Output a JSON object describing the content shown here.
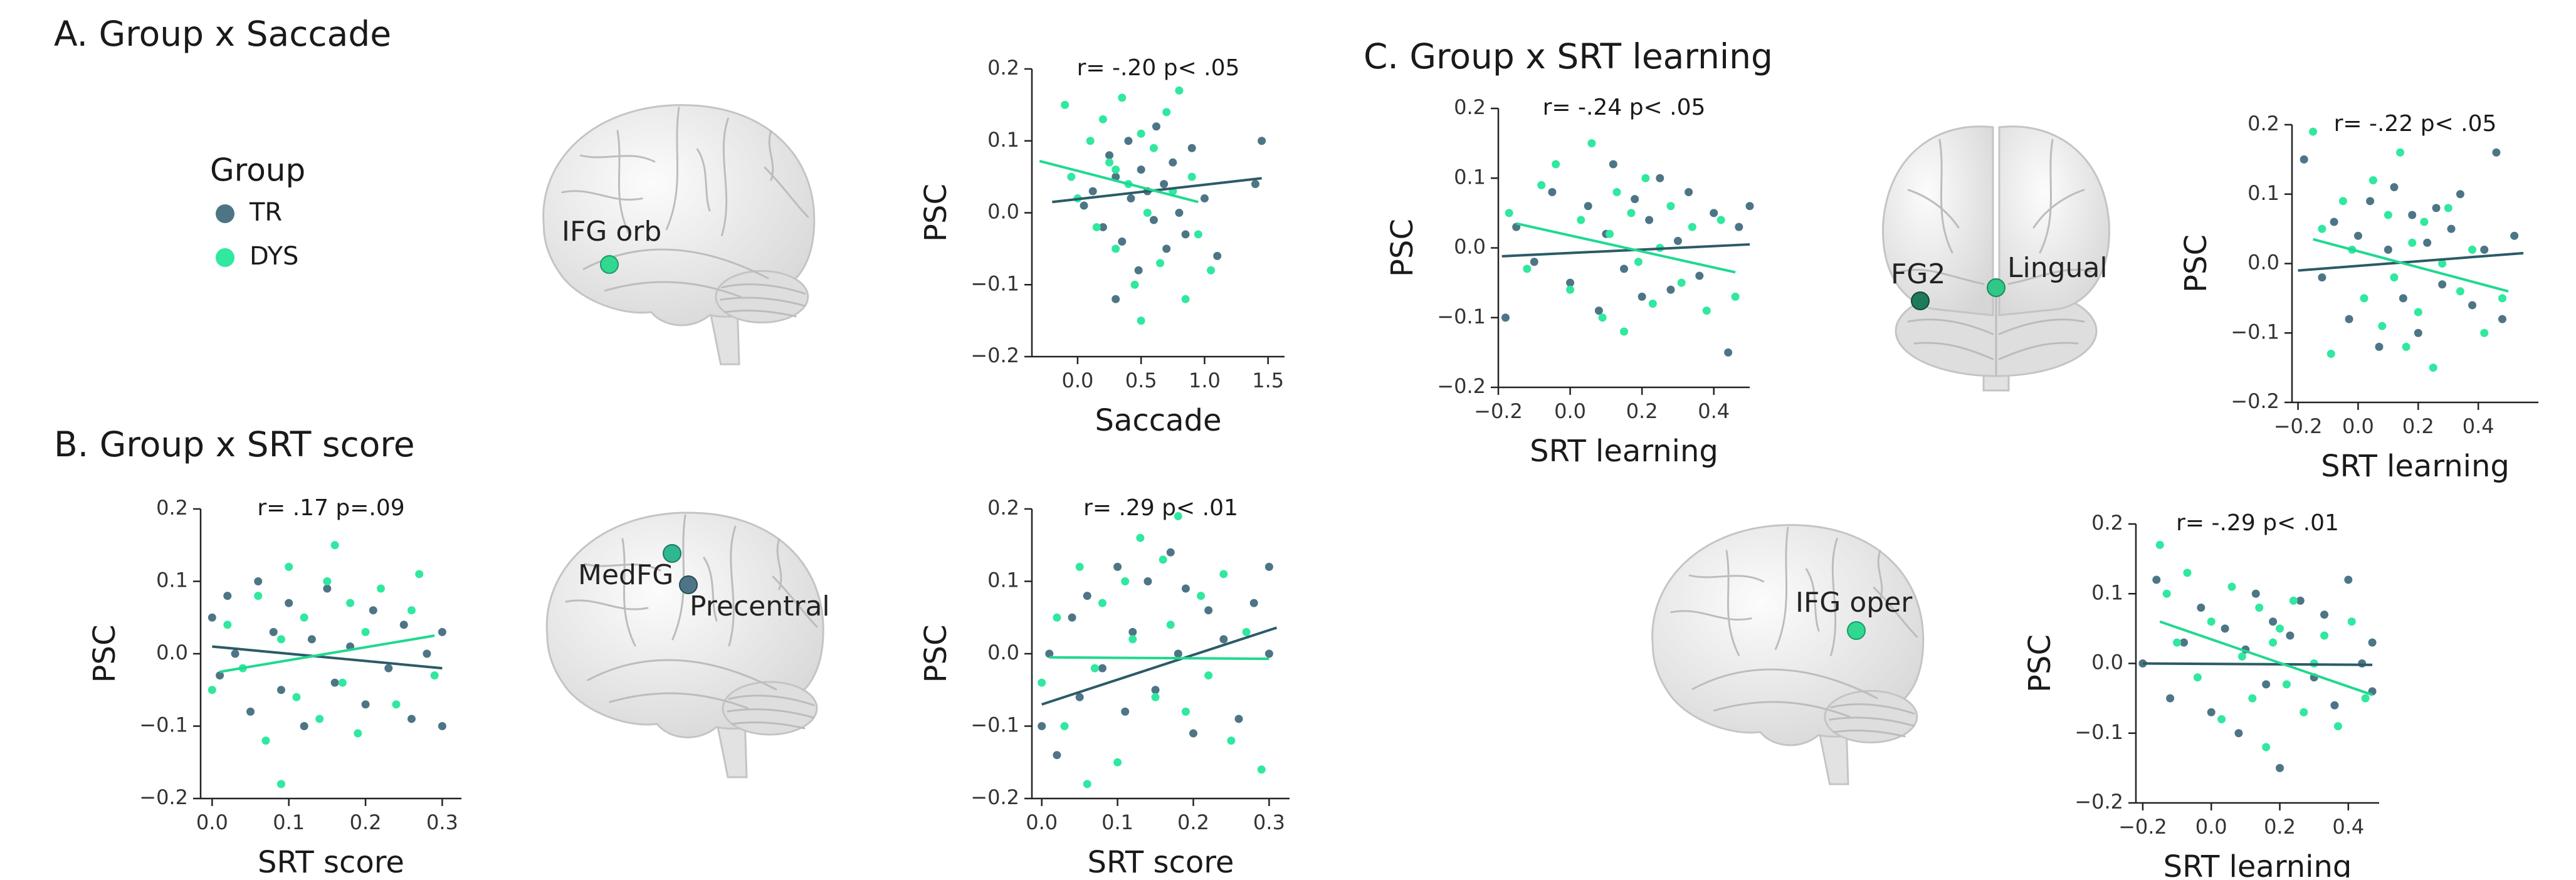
{
  "panel_titles": [
    "A. Group x Saccade",
    "B. Group x SRT score",
    "C. Group x SRT learning"
  ],
  "legend": {
    "title": "Group",
    "items": [
      {
        "name": "TR",
        "color": "#4d7585"
      },
      {
        "name": "DYS",
        "color": "#30e8a0"
      }
    ]
  },
  "brain_labels": [
    "IFG orb",
    "MedFG",
    "Precentral",
    "FG2",
    "Lingual",
    "IFG oper"
  ],
  "chart_data": [
    {
      "type": "scatter",
      "annotation": "r= -.20  p< .05",
      "xlabel": "Saccade",
      "ylabel": "PSC",
      "xlim": [
        -0.36,
        1.63
      ],
      "ylim": [
        -0.2,
        0.2
      ],
      "xticks": [
        {
          "value": 0,
          "label": "0.0"
        },
        0.5,
        {
          "value": 1,
          "label": "1.0"
        },
        1.5
      ],
      "yticks": [
        {
          "value": -0.2,
          "label": "−0.2"
        },
        {
          "value": -0.1,
          "label": "−0.1"
        },
        {
          "value": 0,
          "label": "0.0"
        },
        0.1,
        0.2
      ],
      "series": [
        {
          "color": "#4d7585",
          "fit_color": "#2b5b66",
          "x": [
            0.05,
            0.12,
            0.2,
            0.25,
            0.3,
            0.35,
            0.4,
            0.42,
            0.48,
            0.5,
            0.55,
            0.6,
            0.62,
            0.68,
            0.7,
            0.75,
            0.8,
            0.85,
            0.9,
            1.0,
            1.1,
            1.45,
            1.4,
            0.3
          ],
          "y": [
            0.01,
            0.03,
            -0.02,
            0.08,
            0.05,
            -0.04,
            0.1,
            0.02,
            -0.08,
            0.06,
            0.03,
            -0.01,
            0.12,
            0.04,
            -0.05,
            0.07,
            0.0,
            -0.03,
            0.09,
            0.02,
            -0.06,
            0.1,
            0.04,
            -0.12
          ],
          "fit_x": [
            -0.2,
            1.45
          ],
          "fit_y": [
            0.015,
            0.048
          ]
        },
        {
          "color": "#30e8a0",
          "fit_color": "#1fd990",
          "x": [
            -0.1,
            -0.05,
            0.0,
            0.1,
            0.15,
            0.2,
            0.25,
            0.3,
            0.35,
            0.4,
            0.45,
            0.5,
            0.55,
            0.6,
            0.65,
            0.7,
            0.75,
            0.8,
            0.85,
            0.9,
            0.95,
            1.05,
            0.5,
            0.3
          ],
          "y": [
            0.15,
            0.05,
            0.02,
            0.1,
            -0.02,
            0.13,
            0.07,
            -0.05,
            0.16,
            0.04,
            -0.1,
            0.11,
            0.0,
            0.09,
            -0.07,
            0.14,
            0.03,
            0.17,
            -0.12,
            0.05,
            -0.03,
            -0.08,
            -0.15,
            0.06
          ],
          "fit_x": [
            -0.3,
            0.95
          ],
          "fit_y": [
            0.072,
            0.015
          ]
        }
      ]
    },
    {
      "type": "scatter",
      "annotation": "r= .17  p=.09",
      "xlabel": "SRT score",
      "ylabel": "PSC",
      "xlim": [
        -0.015,
        0.325
      ],
      "ylim": [
        -0.2,
        0.2
      ],
      "xticks": [
        {
          "value": 0,
          "label": "0.0"
        },
        0.1,
        0.2,
        0.3
      ],
      "yticks": [
        {
          "value": -0.2,
          "label": "−0.2"
        },
        {
          "value": -0.1,
          "label": "−0.1"
        },
        {
          "value": 0,
          "label": "0.0"
        },
        0.1,
        0.2
      ],
      "series": [
        {
          "color": "#4d7585",
          "fit_color": "#2b5b66",
          "x": [
            0.0,
            0.01,
            0.02,
            0.03,
            0.05,
            0.06,
            0.08,
            0.09,
            0.1,
            0.12,
            0.13,
            0.15,
            0.16,
            0.18,
            0.2,
            0.21,
            0.23,
            0.25,
            0.26,
            0.28,
            0.3,
            0.3
          ],
          "y": [
            0.05,
            -0.03,
            0.08,
            0.0,
            -0.08,
            0.1,
            0.03,
            -0.05,
            0.07,
            -0.1,
            0.02,
            0.09,
            -0.04,
            0.01,
            -0.07,
            0.06,
            -0.02,
            0.04,
            -0.09,
            0.0,
            0.03,
            -0.1
          ],
          "fit_x": [
            0.0,
            0.3
          ],
          "fit_y": [
            0.01,
            -0.02
          ]
        },
        {
          "color": "#30e8a0",
          "fit_color": "#1fd990",
          "x": [
            0.0,
            0.02,
            0.04,
            0.06,
            0.07,
            0.09,
            0.1,
            0.11,
            0.12,
            0.14,
            0.15,
            0.16,
            0.17,
            0.18,
            0.19,
            0.2,
            0.22,
            0.24,
            0.26,
            0.27,
            0.29,
            0.09
          ],
          "y": [
            -0.05,
            0.04,
            -0.02,
            0.08,
            -0.12,
            0.02,
            0.12,
            -0.06,
            0.05,
            -0.09,
            0.1,
            0.15,
            -0.04,
            0.07,
            -0.11,
            0.03,
            0.09,
            -0.07,
            0.06,
            0.11,
            -0.03,
            -0.18
          ],
          "fit_x": [
            0.01,
            0.29
          ],
          "fit_y": [
            -0.025,
            0.025
          ]
        }
      ]
    },
    {
      "type": "scatter",
      "annotation": "r= .29  p< .01",
      "xlabel": "SRT score",
      "ylabel": "PSC",
      "xlim": [
        -0.013,
        0.327
      ],
      "ylim": [
        -0.2,
        0.2
      ],
      "xticks": [
        {
          "value": 0,
          "label": "0.0"
        },
        0.1,
        0.2,
        0.3
      ],
      "yticks": [
        {
          "value": -0.2,
          "label": "−0.2"
        },
        {
          "value": -0.1,
          "label": "−0.1"
        },
        {
          "value": 0,
          "label": "0.0"
        },
        0.1,
        0.2
      ],
      "series": [
        {
          "color": "#4d7585",
          "fit_color": "#2b5b66",
          "x": [
            0.0,
            0.01,
            0.02,
            0.04,
            0.05,
            0.06,
            0.08,
            0.1,
            0.11,
            0.12,
            0.14,
            0.15,
            0.17,
            0.18,
            0.19,
            0.2,
            0.22,
            0.24,
            0.26,
            0.28,
            0.3,
            0.3
          ],
          "y": [
            -0.1,
            0.0,
            -0.14,
            0.05,
            -0.06,
            0.08,
            -0.02,
            0.12,
            -0.08,
            0.03,
            0.1,
            -0.05,
            0.14,
            0.0,
            0.09,
            -0.11,
            0.06,
            0.02,
            -0.09,
            0.07,
            0.12,
            0.0
          ],
          "fit_x": [
            0.0,
            0.31
          ],
          "fit_y": [
            -0.07,
            0.036
          ]
        },
        {
          "color": "#30e8a0",
          "fit_color": "#1fd990",
          "x": [
            0.0,
            0.02,
            0.03,
            0.05,
            0.07,
            0.08,
            0.1,
            0.11,
            0.12,
            0.13,
            0.15,
            0.16,
            0.17,
            0.18,
            0.19,
            0.21,
            0.22,
            0.24,
            0.25,
            0.27,
            0.29,
            0.06
          ],
          "y": [
            -0.04,
            0.05,
            -0.1,
            0.12,
            -0.02,
            0.07,
            -0.15,
            0.1,
            0.02,
            0.16,
            -0.06,
            0.13,
            0.04,
            0.19,
            -0.08,
            0.08,
            -0.03,
            0.11,
            -0.12,
            0.03,
            -0.16,
            -0.18
          ],
          "fit_x": [
            0.01,
            0.3
          ],
          "fit_y": [
            -0.005,
            -0.007
          ]
        }
      ]
    },
    {
      "type": "scatter",
      "annotation": "r= -.24  p< .05",
      "xlabel": "SRT learning",
      "ylabel": "PSC",
      "xlim": [
        -0.2,
        0.5
      ],
      "ylim": [
        -0.2,
        0.2
      ],
      "xticks": [
        {
          "value": -0.2,
          "label": "−0.2"
        },
        {
          "value": 0,
          "label": "0.0"
        },
        0.2,
        0.4
      ],
      "yticks": [
        {
          "value": -0.2,
          "label": "−0.2"
        },
        {
          "value": -0.1,
          "label": "−0.1"
        },
        {
          "value": 0,
          "label": "0.0"
        },
        0.1,
        0.2
      ],
      "series": [
        {
          "color": "#4d7585",
          "fit_color": "#2b5b66",
          "x": [
            -0.18,
            -0.15,
            -0.1,
            -0.05,
            0.0,
            0.05,
            0.08,
            0.1,
            0.12,
            0.15,
            0.18,
            0.2,
            0.22,
            0.25,
            0.28,
            0.3,
            0.33,
            0.36,
            0.4,
            0.44,
            0.47,
            0.5
          ],
          "y": [
            -0.1,
            0.03,
            -0.02,
            0.08,
            -0.05,
            0.06,
            -0.09,
            0.02,
            0.12,
            -0.03,
            0.07,
            -0.07,
            0.04,
            0.1,
            -0.06,
            0.01,
            0.08,
            -0.04,
            0.05,
            -0.15,
            0.03,
            0.06
          ],
          "fit_x": [
            -0.19,
            0.5
          ],
          "fit_y": [
            -0.012,
            0.005
          ]
        },
        {
          "color": "#30e8a0",
          "fit_color": "#1fd990",
          "x": [
            -0.17,
            -0.12,
            -0.08,
            -0.04,
            0.0,
            0.03,
            0.06,
            0.09,
            0.11,
            0.13,
            0.15,
            0.17,
            0.19,
            0.21,
            0.23,
            0.25,
            0.28,
            0.31,
            0.34,
            0.38,
            0.42,
            0.46
          ],
          "y": [
            0.05,
            -0.03,
            0.09,
            0.12,
            -0.06,
            0.04,
            0.15,
            -0.1,
            0.02,
            0.08,
            -0.12,
            0.05,
            -0.02,
            0.1,
            -0.08,
            0.0,
            0.06,
            -0.05,
            0.03,
            -0.09,
            0.04,
            -0.07
          ],
          "fit_x": [
            -0.15,
            0.46
          ],
          "fit_y": [
            0.035,
            -0.035
          ]
        }
      ]
    },
    {
      "type": "scatter",
      "annotation": "r= -.22  p< .05",
      "xlabel": "SRT learning",
      "ylabel": "PSC",
      "xlim": [
        -0.22,
        0.6
      ],
      "ylim": [
        -0.2,
        0.2
      ],
      "xticks": [
        {
          "value": -0.2,
          "label": "−0.2"
        },
        {
          "value": 0,
          "label": "0.0"
        },
        0.2,
        0.4
      ],
      "yticks": [
        {
          "value": -0.2,
          "label": "−0.2"
        },
        {
          "value": -0.1,
          "label": "−0.1"
        },
        {
          "value": 0,
          "label": "0.0"
        },
        0.1,
        0.2
      ],
      "series": [
        {
          "color": "#4d7585",
          "fit_color": "#2b5b66",
          "x": [
            -0.18,
            -0.12,
            -0.08,
            -0.03,
            0.0,
            0.04,
            0.07,
            0.1,
            0.12,
            0.15,
            0.18,
            0.2,
            0.23,
            0.26,
            0.28,
            0.31,
            0.34,
            0.38,
            0.42,
            0.46,
            0.48,
            0.52
          ],
          "y": [
            0.15,
            -0.02,
            0.06,
            -0.08,
            0.04,
            0.09,
            -0.12,
            0.02,
            0.11,
            -0.05,
            0.07,
            -0.1,
            0.03,
            0.08,
            -0.03,
            0.05,
            0.1,
            -0.06,
            0.02,
            0.16,
            -0.08,
            0.04
          ],
          "fit_x": [
            -0.2,
            0.55
          ],
          "fit_y": [
            -0.01,
            0.015
          ]
        },
        {
          "color": "#30e8a0",
          "fit_color": "#1fd990",
          "x": [
            -0.15,
            -0.12,
            -0.09,
            -0.05,
            -0.02,
            0.02,
            0.05,
            0.08,
            0.1,
            0.12,
            0.14,
            0.16,
            0.18,
            0.2,
            0.22,
            0.25,
            0.28,
            0.3,
            0.34,
            0.38,
            0.42,
            0.48
          ],
          "y": [
            0.19,
            0.05,
            -0.13,
            0.09,
            0.02,
            -0.05,
            0.12,
            -0.09,
            0.07,
            -0.02,
            0.16,
            -0.12,
            0.03,
            -0.07,
            0.06,
            -0.15,
            0.0,
            0.08,
            -0.04,
            0.02,
            -0.1,
            -0.05
          ],
          "fit_x": [
            -0.15,
            0.5
          ],
          "fit_y": [
            0.035,
            -0.04
          ]
        }
      ]
    },
    {
      "type": "scatter",
      "annotation": "r= -.29  p< .01",
      "xlabel": "SRT learning",
      "ylabel": "PSC",
      "xlim": [
        -0.22,
        0.49
      ],
      "ylim": [
        -0.2,
        0.2
      ],
      "xticks": [
        {
          "value": -0.2,
          "label": "−0.2"
        },
        {
          "value": 0,
          "label": "0.0"
        },
        0.2,
        0.4
      ],
      "yticks": [
        {
          "value": -0.2,
          "label": "−0.2"
        },
        {
          "value": -0.1,
          "label": "−0.1"
        },
        {
          "value": 0,
          "label": "0.0"
        },
        0.1,
        0.2
      ],
      "series": [
        {
          "color": "#4d7585",
          "fit_color": "#2b5b66",
          "x": [
            -0.2,
            -0.16,
            -0.12,
            -0.08,
            -0.03,
            0.0,
            0.04,
            0.08,
            0.1,
            0.13,
            0.16,
            0.18,
            0.2,
            0.23,
            0.26,
            0.3,
            0.33,
            0.36,
            0.4,
            0.44,
            0.47,
            0.47
          ],
          "y": [
            0.0,
            0.12,
            -0.05,
            0.03,
            0.08,
            -0.07,
            0.05,
            -0.1,
            0.02,
            0.1,
            -0.03,
            0.06,
            -0.15,
            0.04,
            0.09,
            -0.02,
            0.07,
            -0.06,
            0.12,
            0.0,
            -0.04,
            0.03
          ],
          "fit_x": [
            -0.2,
            0.47
          ],
          "fit_y": [
            0.0,
            -0.002
          ]
        },
        {
          "color": "#30e8a0",
          "fit_color": "#1fd990",
          "x": [
            -0.15,
            -0.13,
            -0.1,
            -0.07,
            -0.04,
            0.0,
            0.03,
            0.06,
            0.09,
            0.12,
            0.14,
            0.16,
            0.18,
            0.2,
            0.22,
            0.24,
            0.27,
            0.3,
            0.33,
            0.37,
            0.41,
            0.45
          ],
          "y": [
            0.17,
            0.1,
            0.03,
            0.13,
            -0.02,
            0.06,
            -0.08,
            0.11,
            0.01,
            -0.05,
            0.08,
            -0.12,
            0.03,
            0.05,
            -0.03,
            0.09,
            -0.07,
            0.0,
            0.04,
            -0.09,
            0.06,
            -0.05
          ],
          "fit_x": [
            -0.15,
            0.47
          ],
          "fit_y": [
            0.06,
            -0.045
          ]
        }
      ]
    }
  ]
}
